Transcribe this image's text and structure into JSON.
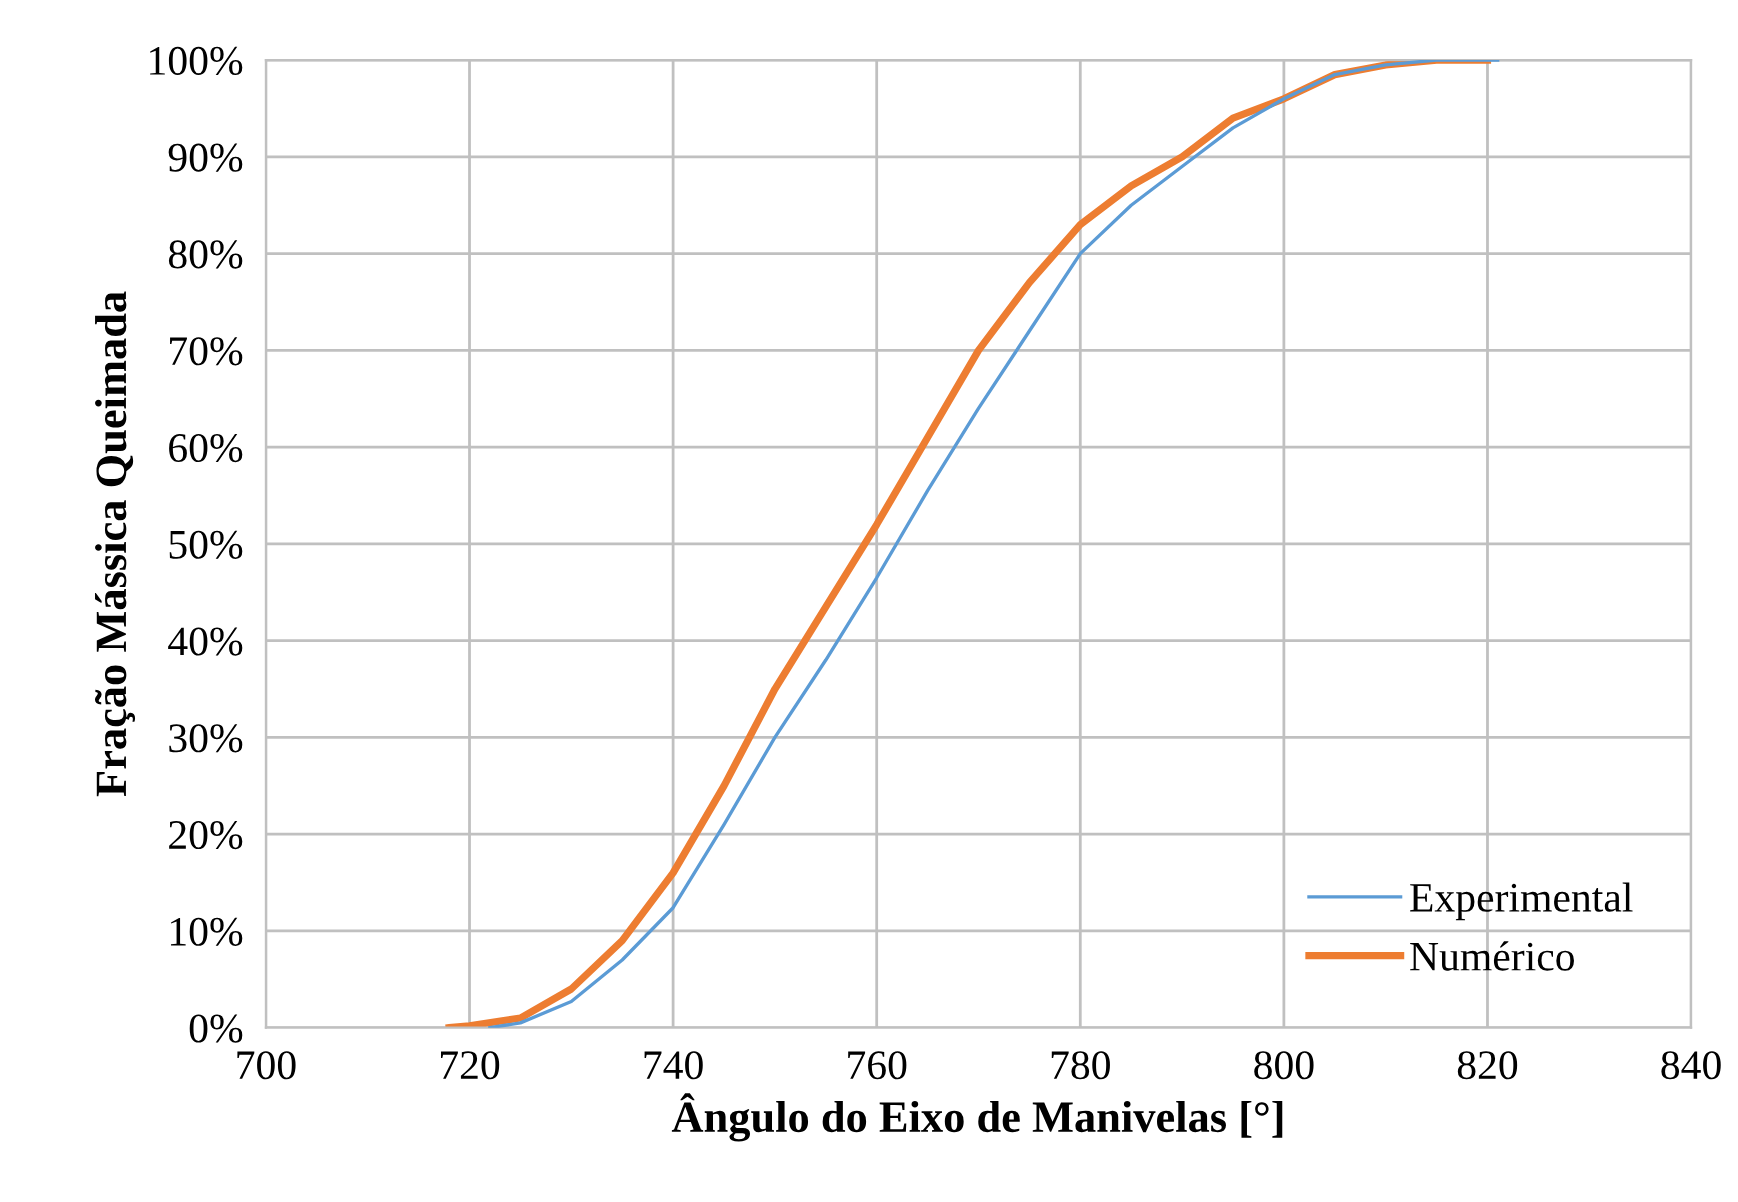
{
  "chart_data": {
    "type": "line",
    "xlabel": "Ângulo do Eixo de Manivelas [°]",
    "ylabel": "Fração Mássica Queimada",
    "series": [
      {
        "name": "Experimental",
        "color": "#5b9bd5",
        "x": [
          722,
          725,
          730,
          735,
          740,
          745,
          750,
          755,
          760,
          765,
          770,
          775,
          780,
          785,
          790,
          795,
          800,
          805,
          810,
          815,
          821
        ],
        "values": [
          0,
          0.5,
          2.7,
          7,
          12.4,
          21,
          30,
          38,
          46.5,
          55.5,
          64,
          72,
          80,
          85,
          89,
          93,
          96,
          98.5,
          99.5,
          100,
          100
        ]
      },
      {
        "name": "Numérico",
        "color": "#ed7d31",
        "x": [
          718,
          720,
          725,
          730,
          735,
          740,
          745,
          750,
          755,
          760,
          765,
          770,
          775,
          780,
          785,
          790,
          795,
          800,
          805,
          810,
          815,
          820
        ],
        "values": [
          0,
          0.2,
          1,
          4,
          9,
          16,
          25,
          35,
          43.5,
          52,
          61,
          70,
          77,
          83,
          87,
          90,
          94,
          96,
          98.5,
          99.5,
          100,
          100
        ]
      }
    ],
    "xlim": [
      700,
      840
    ],
    "xticks": [
      700,
      720,
      740,
      760,
      780,
      800,
      820,
      840
    ],
    "ylim": [
      0,
      100
    ],
    "yticks": [
      {
        "value": 0,
        "label": "0%"
      },
      {
        "value": 10,
        "label": "10%"
      },
      {
        "value": 20,
        "label": "20%"
      },
      {
        "value": 30,
        "label": "30%"
      },
      {
        "value": 40,
        "label": "40%"
      },
      {
        "value": 50,
        "label": "50%"
      },
      {
        "value": 60,
        "label": "60%"
      },
      {
        "value": 70,
        "label": "70%"
      },
      {
        "value": 80,
        "label": "80%"
      },
      {
        "value": 90,
        "label": "90%"
      },
      {
        "value": 100,
        "label": "100%"
      }
    ],
    "grid": true,
    "legend": "bottom right",
    "marker": "none",
    "line_style": "solid"
  }
}
